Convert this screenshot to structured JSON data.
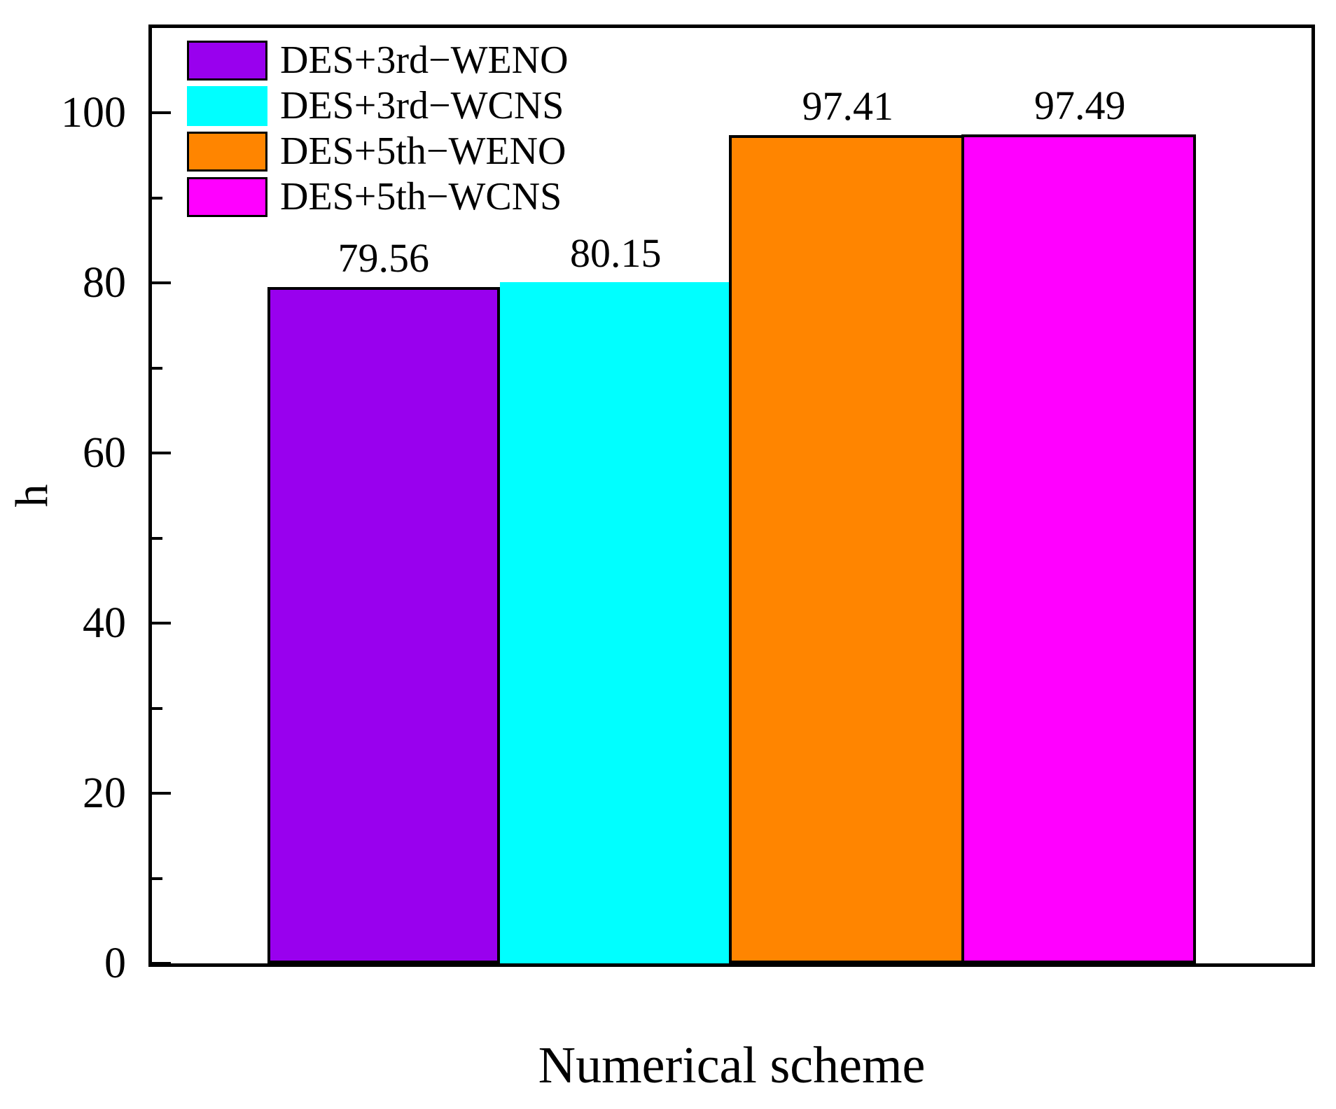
{
  "figure": {
    "background": "#FFFFFF",
    "axis_color": "#000000"
  },
  "chart_data": {
    "type": "bar",
    "title": "",
    "xlabel": "Numerical scheme",
    "ylabel": "h",
    "ylim": [
      0,
      110
    ],
    "yticks_major": [
      0,
      20,
      40,
      60,
      80,
      100
    ],
    "yticks_minor": [
      10,
      30,
      50,
      70,
      90
    ],
    "grid": false,
    "legend_position": "top-left",
    "categories": [
      "DES+3rd−WENO",
      "DES+3rd−WCNS",
      "DES+5th−WENO",
      "DES+5th−WCNS"
    ],
    "bars": [
      {
        "label": "DES+3rd−WENO",
        "value": 79.56,
        "value_label": "79.56",
        "color": "#9900EE",
        "border_color": "#000000"
      },
      {
        "label": "DES+3rd−WCNS",
        "value": 80.15,
        "value_label": "80.15",
        "color": "#00FFFF",
        "border_color": "none"
      },
      {
        "label": "DES+5th−WENO",
        "value": 97.41,
        "value_label": "97.41",
        "color": "#FF8500",
        "border_color": "#000000"
      },
      {
        "label": "DES+5th−WCNS",
        "value": 97.49,
        "value_label": "97.49",
        "color": "#FF00FF",
        "border_color": "#000000"
      }
    ]
  }
}
